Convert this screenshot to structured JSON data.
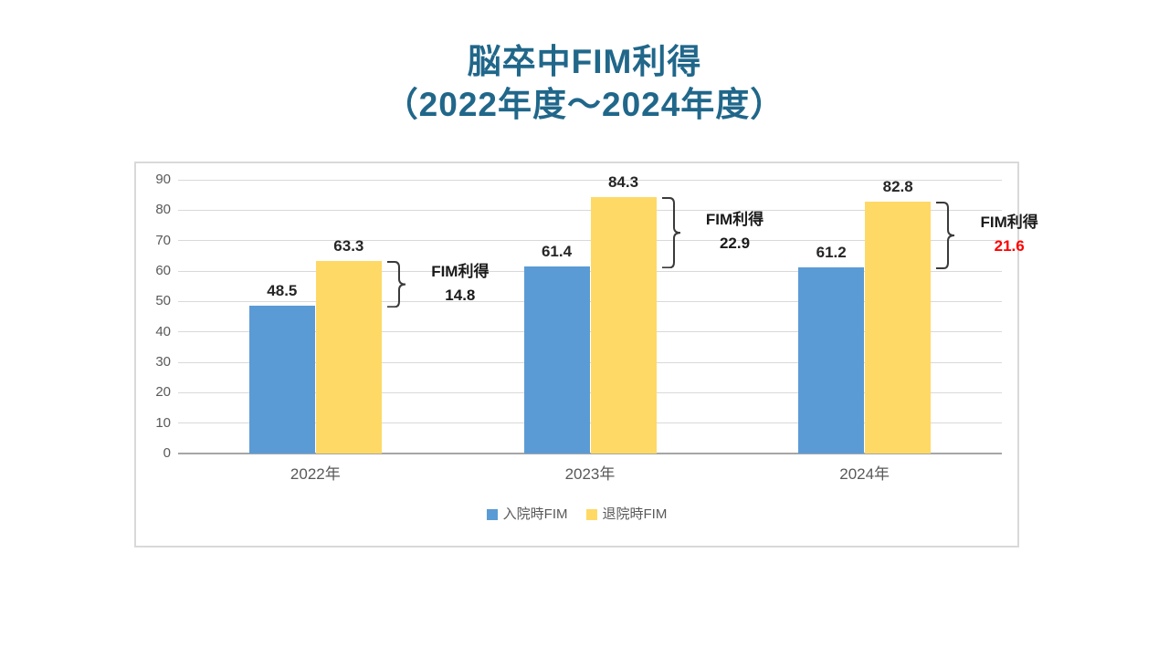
{
  "slide": {
    "title_line1": "脳卒中FIM利得",
    "title_line2": "（2022年度～2024年度）",
    "title_color": "#20678A"
  },
  "chart_data": {
    "type": "bar",
    "title": "脳卒中FIM利得（2022年度～2024年度）",
    "categories": [
      "2022年",
      "2023年",
      "2024年"
    ],
    "series": [
      {
        "name": "入院時FIM",
        "color": "#5B9BD5",
        "values": [
          48.5,
          61.4,
          61.2
        ]
      },
      {
        "name": "退院時FIM",
        "color": "#FFD966",
        "values": [
          63.3,
          84.3,
          82.8
        ]
      }
    ],
    "data_labels": [
      "48.5",
      "61.4",
      "61.2",
      "63.3",
      "84.3",
      "82.8"
    ],
    "ylim": [
      0,
      90
    ],
    "y_ticks": [
      0,
      10,
      20,
      30,
      40,
      50,
      60,
      70,
      80,
      90
    ],
    "grid": true,
    "legend_position": "bottom",
    "annotations": [
      {
        "label": "FIM利得",
        "value": "14.8",
        "value_color": "#1a1a1a",
        "from": 48.5,
        "to": 63.3
      },
      {
        "label": "FIM利得",
        "value": "22.9",
        "value_color": "#1a1a1a",
        "from": 61.4,
        "to": 84.3
      },
      {
        "label": "FIM利得",
        "value": "21.6",
        "value_color": "#FF0000",
        "from": 61.2,
        "to": 82.8
      }
    ],
    "colors": {
      "gridline": "#D9D9D9",
      "axis_line": "#A6A6A6",
      "axis_text": "#595959",
      "data_label_text": "#262626",
      "brace_stroke": "#3A3A3A"
    }
  }
}
